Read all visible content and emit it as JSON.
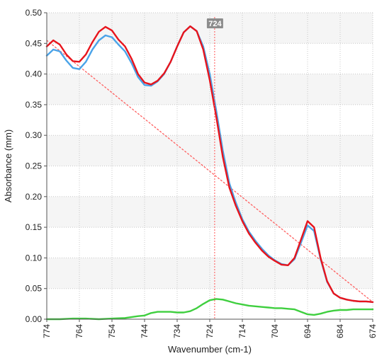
{
  "chart_data": {
    "type": "line",
    "xlabel": "Wavenumber (cm-1)",
    "ylabel": "Absorbance (mm)",
    "xlim": [
      774,
      674
    ],
    "ylim": [
      0.0,
      0.5
    ],
    "x_ticks": [
      "774",
      "764",
      "754",
      "744",
      "734",
      "724",
      "714",
      "704",
      "694",
      "684",
      "674"
    ],
    "y_ticks": [
      "0.00",
      "0.05",
      "0.10",
      "0.15",
      "0.20",
      "0.25",
      "0.30",
      "0.35",
      "0.40",
      "0.45",
      "0.50"
    ],
    "grid": true,
    "cursor": {
      "x": 722.5,
      "label": "724"
    },
    "series": [
      {
        "color": "#e8141c",
        "style": "solid",
        "x": [
          774,
          772,
          770,
          768,
          766,
          764,
          762,
          760,
          758,
          756,
          754,
          752,
          750,
          748,
          746,
          744,
          742,
          740,
          738,
          736,
          734,
          732,
          730,
          728,
          726,
          724,
          722,
          720,
          718,
          716,
          714,
          712,
          710,
          708,
          706,
          704,
          702,
          700,
          698,
          696,
          694,
          692,
          690,
          688,
          686,
          684,
          682,
          680,
          678,
          676,
          674
        ],
        "y": [
          0.445,
          0.455,
          0.448,
          0.432,
          0.421,
          0.42,
          0.432,
          0.452,
          0.469,
          0.477,
          0.471,
          0.456,
          0.445,
          0.425,
          0.4,
          0.386,
          0.383,
          0.389,
          0.401,
          0.42,
          0.445,
          0.468,
          0.478,
          0.47,
          0.44,
          0.39,
          0.33,
          0.265,
          0.215,
          0.185,
          0.16,
          0.14,
          0.125,
          0.112,
          0.102,
          0.095,
          0.089,
          0.088,
          0.1,
          0.13,
          0.16,
          0.15,
          0.1,
          0.062,
          0.042,
          0.035,
          0.032,
          0.03,
          0.029,
          0.029,
          0.028
        ]
      },
      {
        "color": "#4aa3e8",
        "style": "solid",
        "x": [
          774,
          772,
          770,
          768,
          766,
          764,
          762,
          760,
          758,
          756,
          754,
          752,
          750,
          748,
          746,
          744,
          742,
          740,
          738,
          736,
          734,
          732,
          730,
          728,
          726,
          724,
          722,
          720,
          718,
          716,
          714,
          712,
          710,
          708,
          706,
          704,
          702,
          700,
          698,
          696,
          694,
          692,
          690,
          688,
          686,
          684,
          682,
          680,
          678,
          676,
          674
        ],
        "y": [
          0.43,
          0.44,
          0.437,
          0.422,
          0.41,
          0.408,
          0.42,
          0.44,
          0.455,
          0.463,
          0.46,
          0.448,
          0.437,
          0.418,
          0.395,
          0.382,
          0.381,
          0.388,
          0.4,
          0.42,
          0.445,
          0.468,
          0.478,
          0.47,
          0.445,
          0.4,
          0.34,
          0.275,
          0.222,
          0.19,
          0.163,
          0.143,
          0.128,
          0.115,
          0.104,
          0.096,
          0.09,
          0.088,
          0.098,
          0.125,
          0.153,
          0.144,
          0.098,
          0.061,
          0.042,
          0.035,
          0.032,
          0.03,
          0.029,
          0.029,
          0.028
        ]
      },
      {
        "color": "#3fcf3f",
        "style": "solid",
        "x": [
          774,
          770,
          766,
          762,
          758,
          754,
          750,
          746,
          744,
          742,
          740,
          738,
          736,
          734,
          732,
          730,
          728,
          726,
          724,
          722,
          720,
          718,
          716,
          714,
          712,
          710,
          708,
          706,
          704,
          702,
          700,
          698,
          696,
          694,
          692,
          690,
          688,
          686,
          684,
          682,
          680,
          678,
          676,
          674
        ],
        "y": [
          0.0,
          0.0,
          0.001,
          0.001,
          0.0,
          0.001,
          0.002,
          0.005,
          0.006,
          0.01,
          0.012,
          0.012,
          0.012,
          0.011,
          0.011,
          0.013,
          0.018,
          0.025,
          0.031,
          0.033,
          0.032,
          0.029,
          0.026,
          0.024,
          0.022,
          0.021,
          0.02,
          0.019,
          0.018,
          0.018,
          0.017,
          0.016,
          0.012,
          0.008,
          0.007,
          0.009,
          0.012,
          0.014,
          0.015,
          0.015,
          0.016,
          0.016,
          0.016,
          0.016
        ]
      },
      {
        "color": "#ff6060",
        "style": "dotted",
        "x": [
          774,
          674
        ],
        "y": [
          0.455,
          0.028
        ]
      }
    ]
  }
}
